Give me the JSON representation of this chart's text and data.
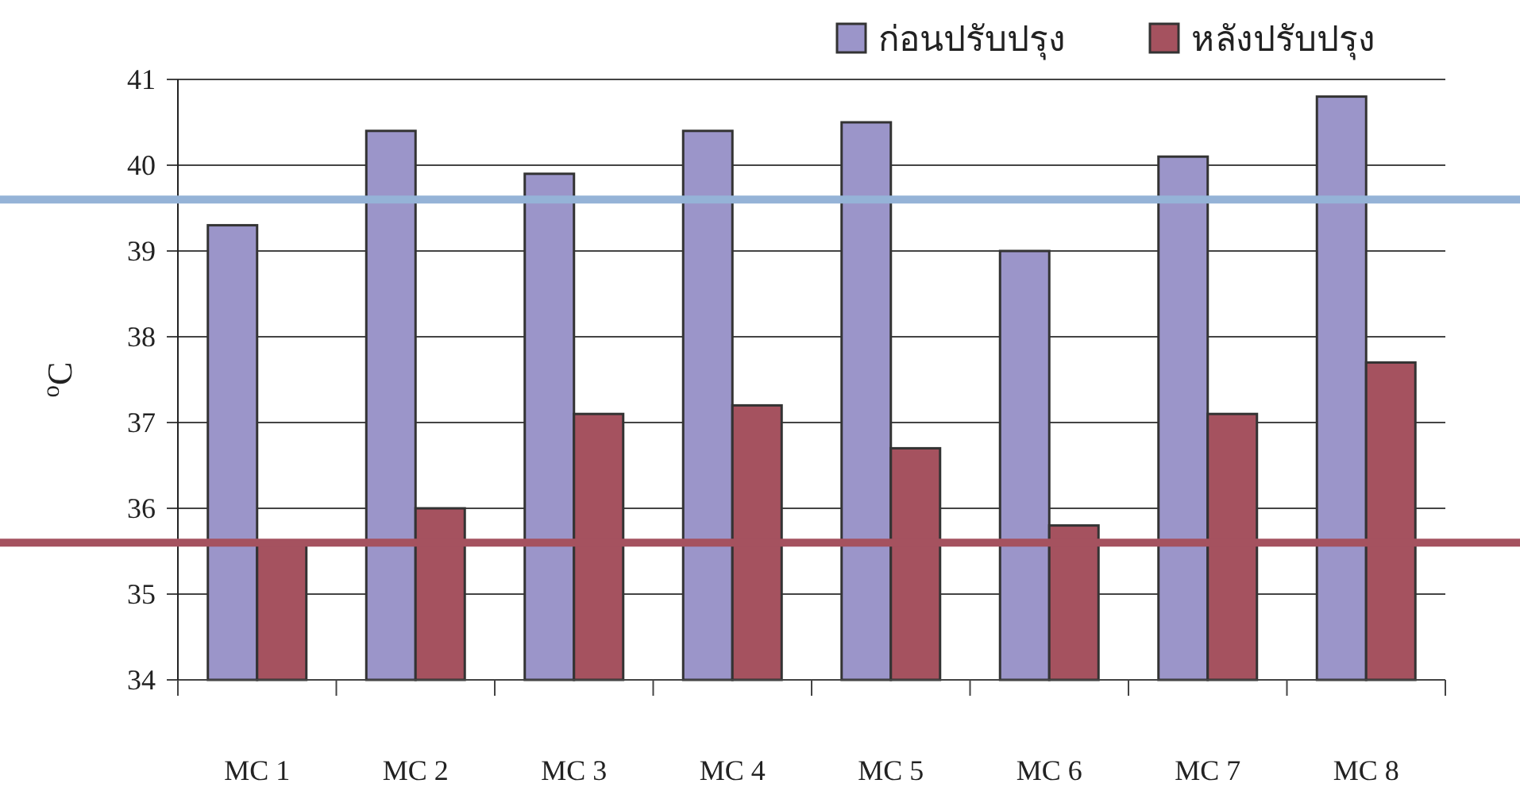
{
  "chart_data": {
    "type": "bar",
    "ylabel": "$^{o}$C",
    "categories": [
      "MC 1",
      "MC 2",
      "MC 3",
      "MC 4",
      "MC 5",
      "MC 6",
      "MC 7",
      "MC 8"
    ],
    "series": [
      {
        "name": "ก่อนปรับปรุง",
        "color": "#9b95c9",
        "values": [
          39.3,
          40.4,
          39.9,
          40.4,
          40.5,
          39.0,
          40.1,
          40.8
        ]
      },
      {
        "name": "หลังปรับปรุง",
        "color": "#a5525f",
        "values": [
          35.6,
          36.0,
          37.1,
          37.2,
          36.7,
          35.8,
          37.1,
          37.7
        ]
      }
    ],
    "ylim": [
      34,
      41
    ],
    "yticks": [
      34,
      35,
      36,
      37,
      38,
      39,
      40,
      41
    ],
    "ref_lines": [
      {
        "axis": "y",
        "value": 39.6,
        "color": "#95b3d7"
      },
      {
        "axis": "y",
        "value": 35.6,
        "color": "#a5525f"
      }
    ],
    "grid": "y",
    "legend": "top right"
  }
}
